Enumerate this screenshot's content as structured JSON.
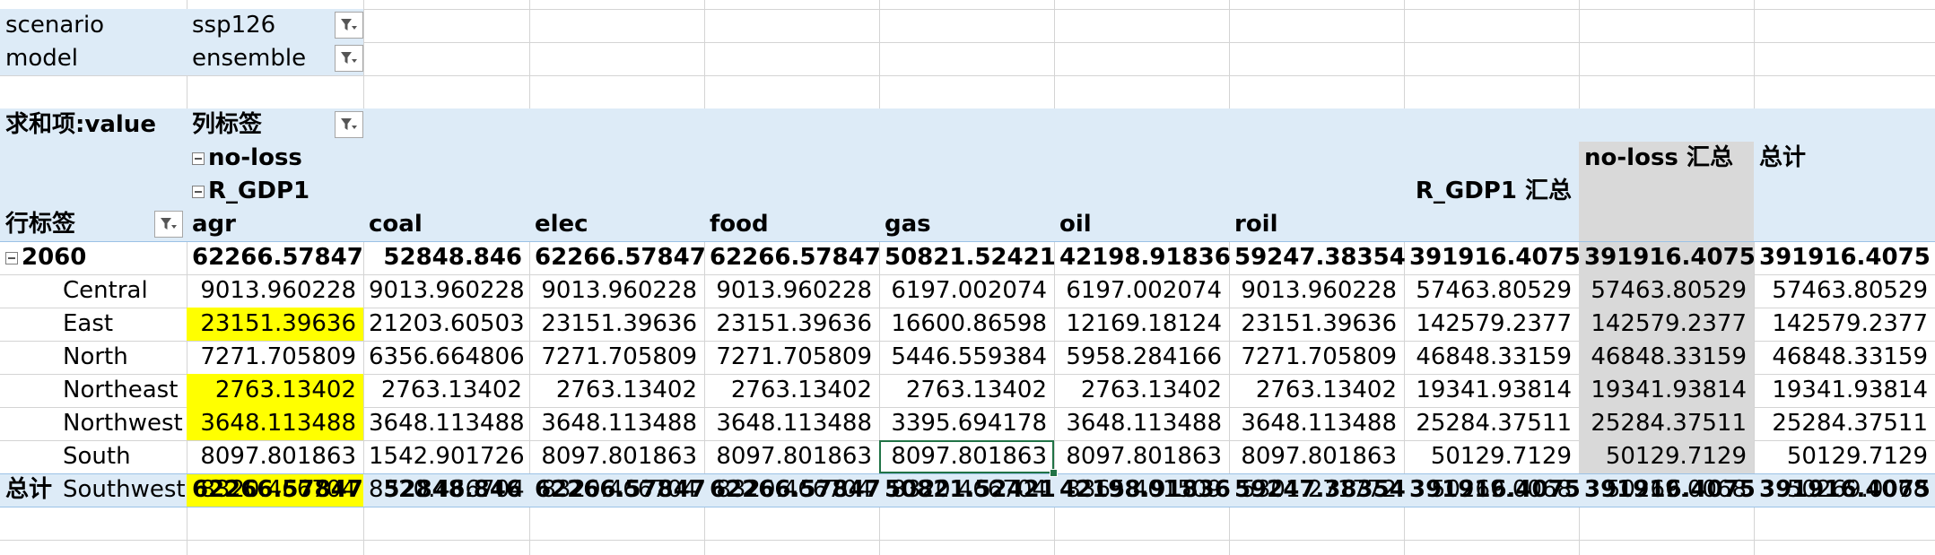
{
  "filters": [
    {
      "label": "scenario",
      "value": "ssp126"
    },
    {
      "label": "model",
      "value": "ensemble"
    }
  ],
  "pivot": {
    "value_label": "求和项:value",
    "column_labels": "列标签",
    "row_labels": "行标签",
    "level1": "no-loss",
    "level2": "R_GDP1",
    "level1_total": "no-loss 汇总",
    "level2_total": "R_GDP1 汇总",
    "grand_total_col": "总计",
    "grand_total_row": "总计",
    "columns": [
      "agr",
      "coal",
      "elec",
      "food",
      "gas",
      "oil",
      "roil"
    ],
    "group": {
      "label": "2060",
      "values": [
        "62266.57847",
        "52848.846",
        "62266.57847",
        "62266.57847",
        "50821.52421",
        "42198.91836",
        "59247.38354",
        "391916.4075",
        "391916.4075",
        "391916.4075"
      ]
    },
    "rows": [
      {
        "label": "Central",
        "values": [
          "9013.960228",
          "9013.960228",
          "9013.960228",
          "9013.960228",
          "6197.002074",
          "6197.002074",
          "9013.960228",
          "57463.80529",
          "57463.80529",
          "57463.80529"
        ]
      },
      {
        "label": "East",
        "highlight": true,
        "values": [
          "23151.39636",
          "21203.60503",
          "23151.39636",
          "23151.39636",
          "16600.86598",
          "12169.18124",
          "23151.39636",
          "142579.2377",
          "142579.2377",
          "142579.2377"
        ]
      },
      {
        "label": "North",
        "values": [
          "7271.705809",
          "6356.664806",
          "7271.705809",
          "7271.705809",
          "5446.559384",
          "5958.284166",
          "7271.705809",
          "46848.33159",
          "46848.33159",
          "46848.33159"
        ]
      },
      {
        "label": "Northeast",
        "highlight": true,
        "values": [
          "2763.13402",
          "2763.13402",
          "2763.13402",
          "2763.13402",
          "2763.13402",
          "2763.13402",
          "2763.13402",
          "19341.93814",
          "19341.93814",
          "19341.93814"
        ]
      },
      {
        "label": "Northwest",
        "highlight": true,
        "values": [
          "3648.113488",
          "3648.113488",
          "3648.113488",
          "3648.113488",
          "3395.694178",
          "3648.113488",
          "3648.113488",
          "25284.37511",
          "25284.37511",
          "25284.37511"
        ]
      },
      {
        "label": "South",
        "values": [
          "8097.801863",
          "1542.901726",
          "8097.801863",
          "8097.801863",
          "8097.801863",
          "8097.801863",
          "8097.801863",
          "50129.7129",
          "50129.7129",
          "50129.7129"
        ]
      },
      {
        "label": "Southwest",
        "highlight": true,
        "values": [
          "8320.466704",
          "8320.466704",
          "8320.466704",
          "8320.466704",
          "8320.466704",
          "3365.401509",
          "5301.271772",
          "50269.0068",
          "50269.0068",
          "50269.0068"
        ]
      }
    ],
    "totals": [
      "62266.57847",
      "52848.846",
      "62266.57847",
      "62266.57847",
      "50821.52421",
      "42198.91836",
      "59247.38354",
      "391916.4075",
      "391916.4075",
      "391916.4075"
    ]
  },
  "colors": {
    "pivot_header": "#ddebf7",
    "total_column": "#d9d9d9",
    "highlight": "#ffff00",
    "selection": "#217346"
  },
  "icons": {
    "filter": "filter-dropdown-icon",
    "collapse": "collapse-minus-icon"
  }
}
